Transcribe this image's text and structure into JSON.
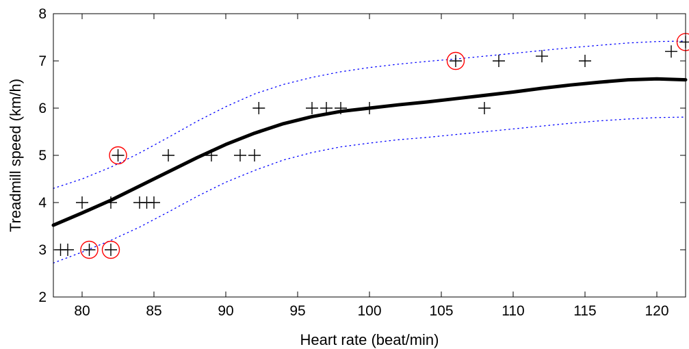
{
  "chart_data": {
    "type": "scatter",
    "title": "",
    "xlabel": "Heart rate (beat/min)",
    "ylabel": "Treadmill speed (km/h)",
    "xlim": [
      78,
      122
    ],
    "ylim": [
      2,
      8
    ],
    "xticks": [
      80,
      85,
      90,
      95,
      100,
      105,
      110,
      115,
      120
    ],
    "yticks": [
      2,
      3,
      4,
      5,
      6,
      7,
      8
    ],
    "grid": false,
    "legend": "none",
    "colors": {
      "points": "#000000",
      "fit": "#000000",
      "band": "#0000ff",
      "highlight": "#ff0000"
    },
    "points": [
      {
        "x": 78.5,
        "y": 3
      },
      {
        "x": 79,
        "y": 3
      },
      {
        "x": 80,
        "y": 4
      },
      {
        "x": 80.5,
        "y": 3
      },
      {
        "x": 82,
        "y": 3
      },
      {
        "x": 82,
        "y": 4
      },
      {
        "x": 82.5,
        "y": 5
      },
      {
        "x": 84,
        "y": 4
      },
      {
        "x": 84.5,
        "y": 4
      },
      {
        "x": 85,
        "y": 4
      },
      {
        "x": 86,
        "y": 5
      },
      {
        "x": 89,
        "y": 5
      },
      {
        "x": 91,
        "y": 5
      },
      {
        "x": 92,
        "y": 5
      },
      {
        "x": 92.3,
        "y": 6
      },
      {
        "x": 96,
        "y": 6
      },
      {
        "x": 97,
        "y": 6
      },
      {
        "x": 98,
        "y": 6
      },
      {
        "x": 100,
        "y": 6
      },
      {
        "x": 106,
        "y": 7
      },
      {
        "x": 108,
        "y": 6
      },
      {
        "x": 109,
        "y": 7
      },
      {
        "x": 112,
        "y": 7.1
      },
      {
        "x": 115,
        "y": 7
      },
      {
        "x": 121,
        "y": 7.2
      },
      {
        "x": 122,
        "y": 7.4
      }
    ],
    "highlighted": [
      {
        "x": 80.5,
        "y": 3
      },
      {
        "x": 82,
        "y": 3
      },
      {
        "x": 82.5,
        "y": 5
      },
      {
        "x": 106,
        "y": 7
      },
      {
        "x": 122,
        "y": 7.4
      }
    ],
    "fit": {
      "x": [
        78,
        80,
        82,
        84,
        86,
        88,
        90,
        92,
        94,
        96,
        98,
        100,
        102,
        104,
        106,
        108,
        110,
        112,
        114,
        116,
        118,
        120,
        122
      ],
      "y": [
        3.52,
        3.78,
        4.05,
        4.35,
        4.65,
        4.95,
        5.23,
        5.47,
        5.67,
        5.82,
        5.93,
        6.0,
        6.07,
        6.13,
        6.2,
        6.27,
        6.34,
        6.42,
        6.49,
        6.55,
        6.6,
        6.62,
        6.6
      ]
    },
    "band_upper": {
      "x": [
        78,
        80,
        82,
        84,
        86,
        88,
        90,
        92,
        94,
        96,
        98,
        100,
        102,
        104,
        106,
        108,
        110,
        112,
        114,
        116,
        118,
        120,
        122
      ],
      "y": [
        4.3,
        4.5,
        4.75,
        5.05,
        5.38,
        5.72,
        6.03,
        6.3,
        6.5,
        6.65,
        6.77,
        6.86,
        6.93,
        6.99,
        7.04,
        7.1,
        7.16,
        7.22,
        7.28,
        7.33,
        7.38,
        7.41,
        7.42
      ]
    },
    "band_lower": {
      "x": [
        78,
        80,
        82,
        84,
        86,
        88,
        90,
        92,
        94,
        96,
        98,
        100,
        102,
        104,
        106,
        108,
        110,
        112,
        114,
        116,
        118,
        120,
        122
      ],
      "y": [
        2.72,
        2.95,
        3.2,
        3.48,
        3.8,
        4.13,
        4.43,
        4.68,
        4.9,
        5.06,
        5.18,
        5.26,
        5.33,
        5.38,
        5.44,
        5.5,
        5.56,
        5.62,
        5.68,
        5.73,
        5.77,
        5.8,
        5.81
      ]
    }
  }
}
